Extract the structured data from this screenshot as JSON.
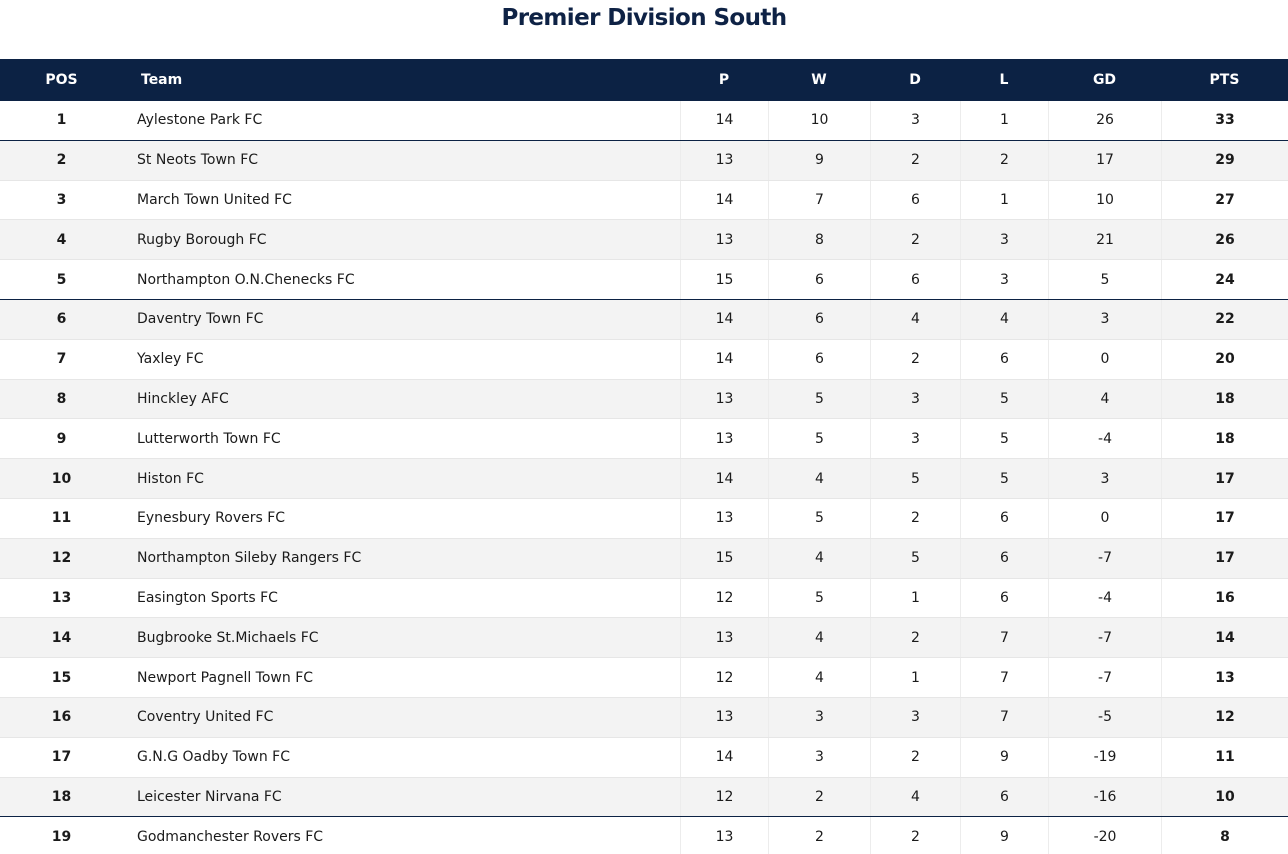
{
  "page_title": "Premier Division South",
  "headers": {
    "pos": "POS",
    "team": "Team",
    "p": "P",
    "w": "W",
    "d": "D",
    "l": "L",
    "gd": "GD",
    "pts": "PTS"
  },
  "rows": [
    {
      "pos": "1",
      "team": "Aylestone Park FC",
      "p": "14",
      "w": "10",
      "d": "3",
      "l": "1",
      "gd": "26",
      "pts": "33"
    },
    {
      "pos": "2",
      "team": "St Neots Town FC",
      "p": "13",
      "w": "9",
      "d": "2",
      "l": "2",
      "gd": "17",
      "pts": "29"
    },
    {
      "pos": "3",
      "team": "March Town United FC",
      "p": "14",
      "w": "7",
      "d": "6",
      "l": "1",
      "gd": "10",
      "pts": "27"
    },
    {
      "pos": "4",
      "team": "Rugby Borough FC",
      "p": "13",
      "w": "8",
      "d": "2",
      "l": "3",
      "gd": "21",
      "pts": "26"
    },
    {
      "pos": "5",
      "team": "Northampton O.N.Chenecks FC",
      "p": "15",
      "w": "6",
      "d": "6",
      "l": "3",
      "gd": "5",
      "pts": "24"
    },
    {
      "pos": "6",
      "team": "Daventry Town FC",
      "p": "14",
      "w": "6",
      "d": "4",
      "l": "4",
      "gd": "3",
      "pts": "22"
    },
    {
      "pos": "7",
      "team": "Yaxley FC",
      "p": "14",
      "w": "6",
      "d": "2",
      "l": "6",
      "gd": "0",
      "pts": "20"
    },
    {
      "pos": "8",
      "team": "Hinckley AFC",
      "p": "13",
      "w": "5",
      "d": "3",
      "l": "5",
      "gd": "4",
      "pts": "18"
    },
    {
      "pos": "9",
      "team": "Lutterworth Town FC",
      "p": "13",
      "w": "5",
      "d": "3",
      "l": "5",
      "gd": "-4",
      "pts": "18"
    },
    {
      "pos": "10",
      "team": "Histon FC",
      "p": "14",
      "w": "4",
      "d": "5",
      "l": "5",
      "gd": "3",
      "pts": "17"
    },
    {
      "pos": "11",
      "team": "Eynesbury Rovers FC",
      "p": "13",
      "w": "5",
      "d": "2",
      "l": "6",
      "gd": "0",
      "pts": "17"
    },
    {
      "pos": "12",
      "team": "Northampton Sileby Rangers FC",
      "p": "15",
      "w": "4",
      "d": "5",
      "l": "6",
      "gd": "-7",
      "pts": "17"
    },
    {
      "pos": "13",
      "team": "Easington Sports FC",
      "p": "12",
      "w": "5",
      "d": "1",
      "l": "6",
      "gd": "-4",
      "pts": "16"
    },
    {
      "pos": "14",
      "team": "Bugbrooke St.Michaels FC",
      "p": "13",
      "w": "4",
      "d": "2",
      "l": "7",
      "gd": "-7",
      "pts": "14"
    },
    {
      "pos": "15",
      "team": "Newport Pagnell Town FC",
      "p": "12",
      "w": "4",
      "d": "1",
      "l": "7",
      "gd": "-7",
      "pts": "13"
    },
    {
      "pos": "16",
      "team": "Coventry United FC",
      "p": "13",
      "w": "3",
      "d": "3",
      "l": "7",
      "gd": "-5",
      "pts": "12"
    },
    {
      "pos": "17",
      "team": "G.N.G Oadby Town FC",
      "p": "14",
      "w": "3",
      "d": "2",
      "l": "9",
      "gd": "-19",
      "pts": "11"
    },
    {
      "pos": "18",
      "team": "Leicester Nirvana FC",
      "p": "12",
      "w": "2",
      "d": "4",
      "l": "6",
      "gd": "-16",
      "pts": "10"
    },
    {
      "pos": "19",
      "team": "Godmanchester Rovers FC",
      "p": "13",
      "w": "2",
      "d": "2",
      "l": "9",
      "gd": "-20",
      "pts": "8"
    }
  ]
}
